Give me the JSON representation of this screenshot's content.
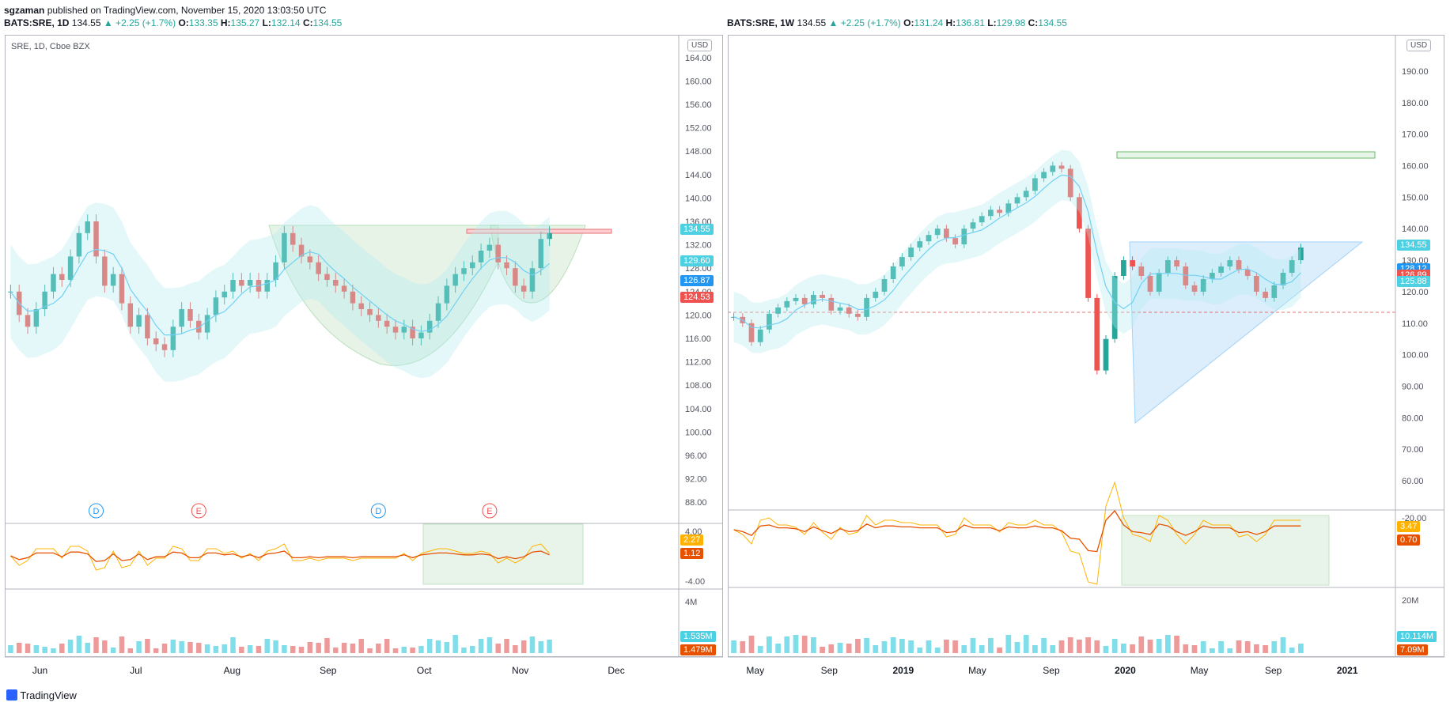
{
  "header": {
    "publisher": "sgzaman",
    "published_text": "published on TradingView.com, November 15, 2020 13:03:50 UTC"
  },
  "footer": {
    "brand": "TradingView"
  },
  "colors": {
    "up": "#26a69a",
    "down": "#ef5350",
    "ma_red": "#e57373",
    "ma_blue": "#4fc3f7",
    "osc_orange": "#ffb300",
    "osc_red": "#e65100"
  },
  "chart_data": [
    {
      "type": "candlestick",
      "symbol_label": "SRE, 1D, Cboe BZX",
      "header": {
        "symbol": "BATS:SRE, 1D",
        "last": "134.55",
        "change": "▲ +2.25 (+1.7%)",
        "o": "133.35",
        "h": "135.27",
        "l": "132.14",
        "c": "134.55"
      },
      "currency": "USD",
      "x_ticks": [
        "Jun",
        "Jul",
        "Aug",
        "Sep",
        "Oct",
        "Nov",
        "Dec"
      ],
      "y_ticks": [
        "164.00",
        "160.00",
        "156.00",
        "152.00",
        "148.00",
        "144.00",
        "140.00",
        "136.00",
        "132.00",
        "128.00",
        "124.00",
        "120.00",
        "116.00",
        "112.00",
        "108.00",
        "104.00",
        "100.00",
        "96.00",
        "92.00",
        "88.00"
      ],
      "ylim": [
        86,
        166
      ],
      "price_badges": [
        {
          "text": "134.55",
          "value": 134.55,
          "color": "#4dd0e1"
        },
        {
          "text": "129.60",
          "value": 129.6,
          "color": "#4dd0e1"
        },
        {
          "text": "126.87",
          "value": 126.87,
          "color": "#2196f3"
        },
        {
          "text": "124.53",
          "value": 124.53,
          "color": "#ef5350"
        }
      ],
      "close_series": [
        124,
        120,
        118,
        121,
        124,
        127,
        126,
        130,
        134,
        136,
        130,
        125,
        127,
        122,
        118,
        120,
        116,
        115,
        114,
        118,
        121,
        119,
        117,
        120,
        123,
        124,
        126,
        125,
        126,
        124,
        126,
        129,
        134,
        132,
        130,
        129,
        127,
        126,
        125,
        124,
        122,
        121,
        120,
        119,
        118,
        117,
        118,
        116,
        117,
        119,
        122,
        125,
        127,
        128,
        129,
        131,
        132,
        129,
        128,
        125,
        124,
        128,
        133,
        134
      ],
      "events": [
        {
          "text": "D",
          "date_index": 10,
          "color": "#2196f3"
        },
        {
          "text": "E",
          "date_index": 22,
          "color": "#ef5350"
        },
        {
          "text": "D",
          "date_index": 43,
          "color": "#2196f3"
        },
        {
          "text": "E",
          "date_index": 56,
          "color": "#ef5350"
        }
      ],
      "oscillator": {
        "y_ticks": [
          "4.00",
          "-4.00"
        ],
        "badges": [
          {
            "text": "2.27",
            "color": "#ffb300"
          },
          {
            "text": "1.12",
            "color": "#e65100"
          }
        ]
      },
      "volume": {
        "y_ticks": [
          "4M"
        ],
        "badges": [
          {
            "text": "1.535M",
            "color": "#4dd0e1"
          },
          {
            "text": "1.479M",
            "color": "#e65100"
          }
        ]
      }
    },
    {
      "type": "candlestick",
      "header": {
        "symbol": "BATS:SRE, 1W",
        "last": "134.55",
        "change": "▲ +2.25 (+1.7%)",
        "o": "131.24",
        "h": "136.81",
        "l": "129.98",
        "c": "134.55"
      },
      "currency": "USD",
      "x_ticks": [
        "May",
        "Sep",
        "2019",
        "May",
        "Sep",
        "2020",
        "May",
        "Sep",
        "2021"
      ],
      "y_ticks": [
        "190.00",
        "180.00",
        "170.00",
        "160.00",
        "150.00",
        "140.00",
        "130.00",
        "120.00",
        "110.00",
        "100.00",
        "90.00",
        "80.00",
        "70.00",
        "60.00"
      ],
      "ylim": [
        52,
        198
      ],
      "price_badges": [
        {
          "text": "134.55",
          "value": 134.55,
          "color": "#4dd0e1"
        },
        {
          "text": "128.12",
          "value": 128.12,
          "color": "#2196f3"
        },
        {
          "text": "126.89",
          "value": 126.89,
          "color": "#ef5350"
        },
        {
          "text": "125.88",
          "value": 125.88,
          "color": "#4dd0e1"
        }
      ],
      "close_series": [
        112,
        110,
        104,
        108,
        113,
        115,
        117,
        118,
        116,
        119,
        118,
        114,
        115,
        113,
        112,
        118,
        120,
        124,
        128,
        131,
        134,
        136,
        138,
        140,
        137,
        135,
        140,
        142,
        144,
        146,
        145,
        148,
        150,
        152,
        156,
        158,
        160,
        159,
        150,
        140,
        118,
        95,
        105,
        125,
        130,
        128,
        125,
        120,
        126,
        130,
        128,
        122,
        120,
        124,
        126,
        128,
        130,
        127,
        125,
        120,
        118,
        122,
        126,
        130,
        134
      ],
      "oscillator": {
        "y_ticks": [
          "-20.00"
        ],
        "badges": [
          {
            "text": "3.47",
            "color": "#ffb300"
          },
          {
            "text": "0.70",
            "color": "#e65100"
          }
        ]
      },
      "volume": {
        "y_ticks": [
          "20M"
        ],
        "badges": [
          {
            "text": "10.114M",
            "color": "#4dd0e1"
          },
          {
            "text": "7.09M",
            "color": "#e65100"
          }
        ]
      }
    }
  ]
}
